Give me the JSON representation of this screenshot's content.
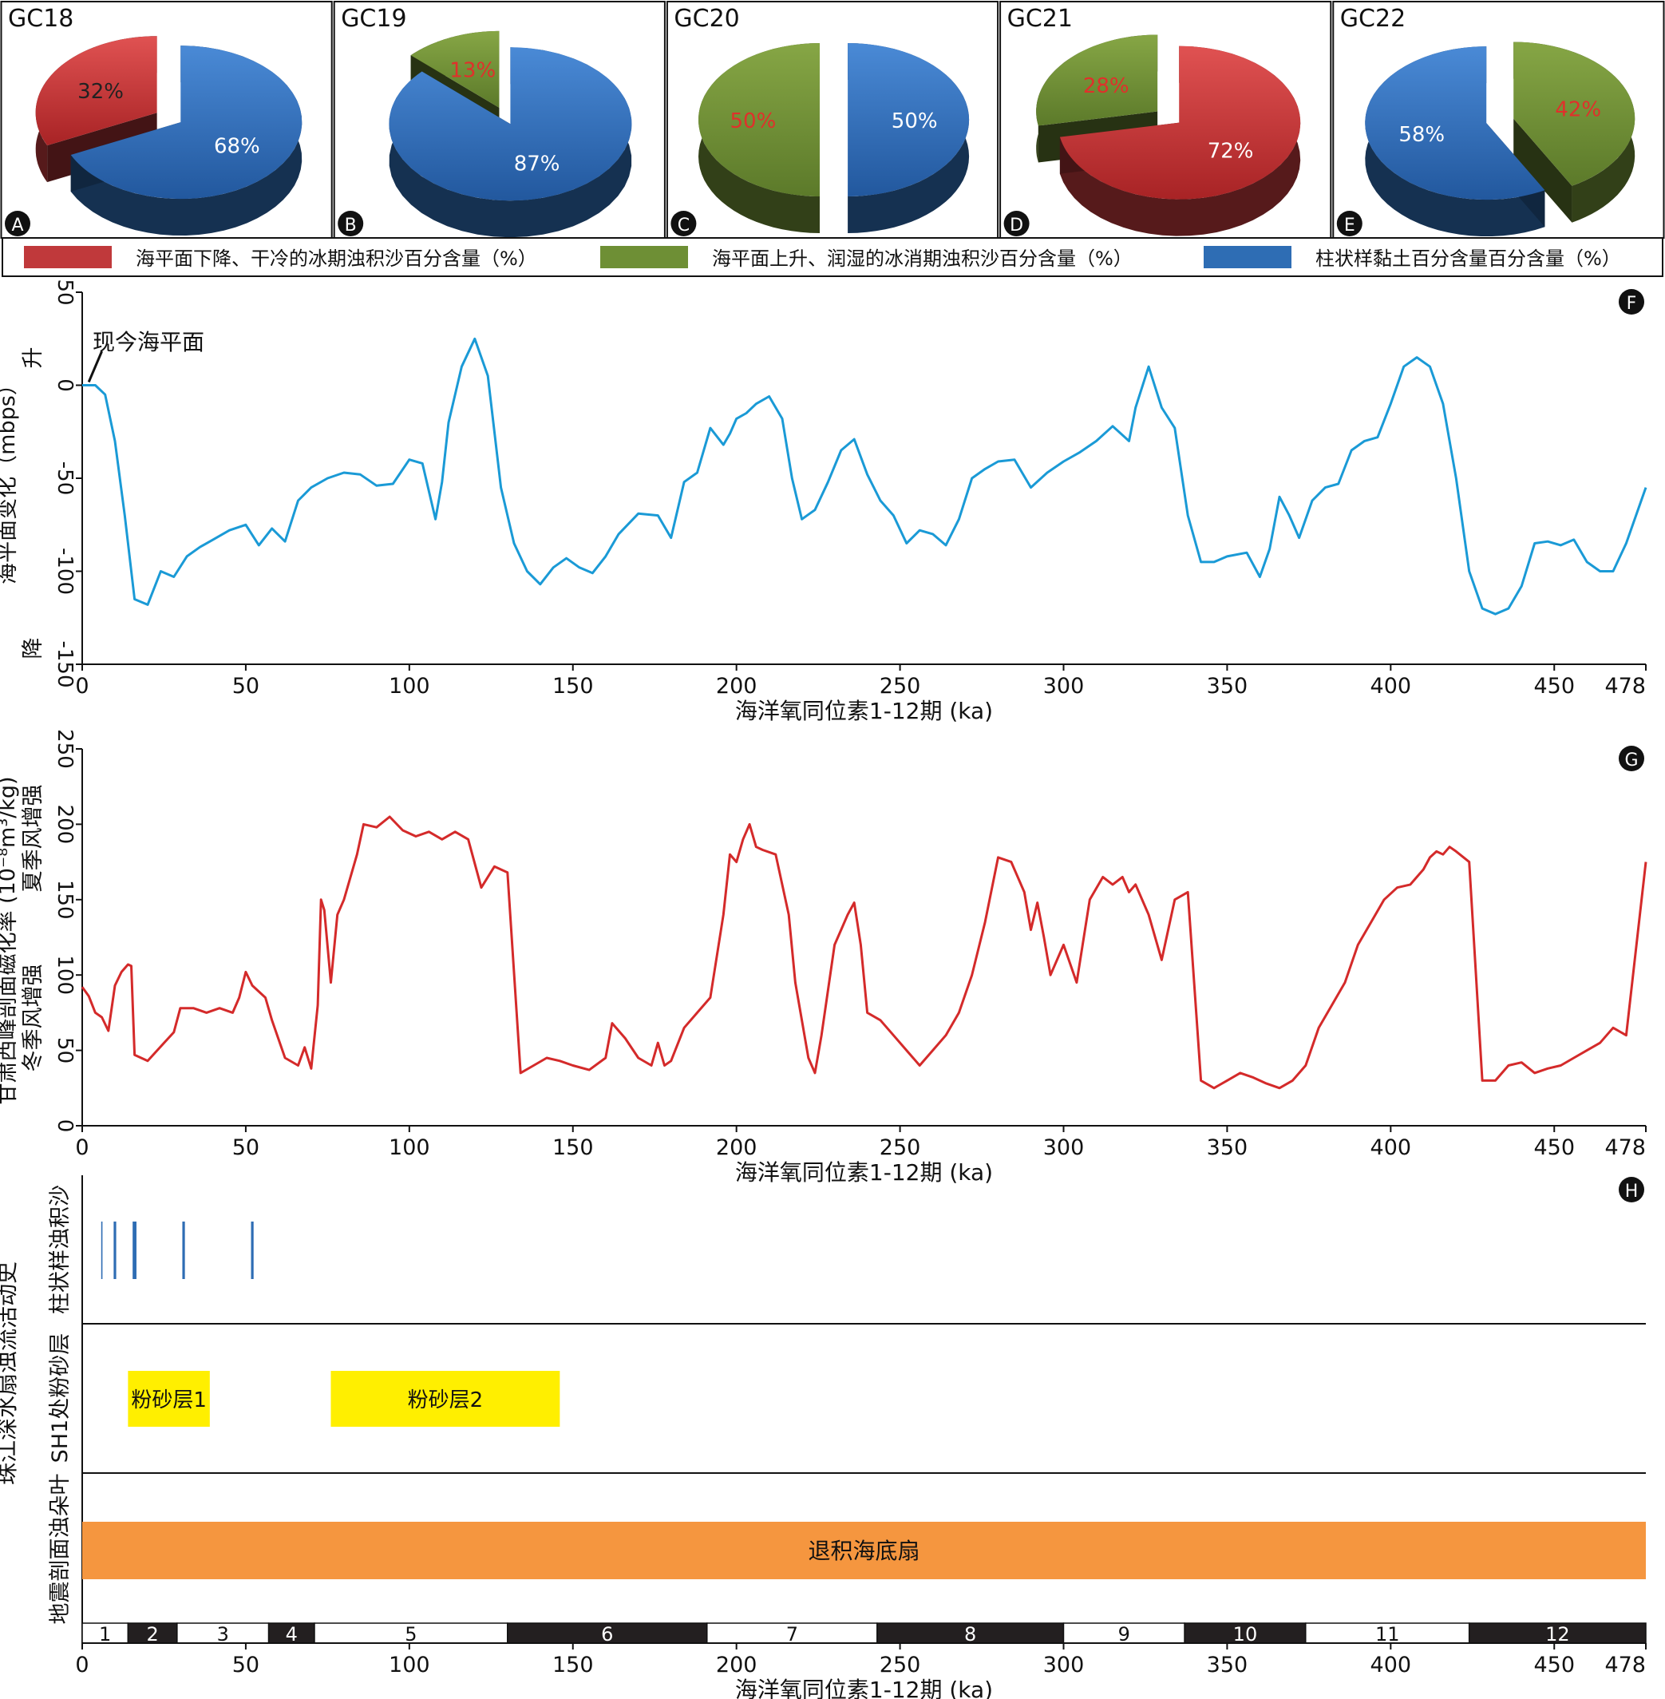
{
  "colors": {
    "red_sand": "#c0393b",
    "green_sand": "#6e8f35",
    "blue_clay": "#2e6db4",
    "sea_curve": "#1a9ad6",
    "mag_curve": "#d42a2a",
    "silt_fill": "#ffef00",
    "fan_fill": "#f5963f",
    "emphasis_label": "#e0302b"
  },
  "pies": [
    {
      "panel": "A",
      "title": "GC18",
      "slices": [
        {
          "key": "red",
          "value": 32,
          "label": "32%"
        },
        {
          "key": "blue",
          "value": 68,
          "label": "68%"
        }
      ]
    },
    {
      "panel": "B",
      "title": "GC19",
      "slices": [
        {
          "key": "green",
          "value": 13,
          "label": "13%"
        },
        {
          "key": "blue",
          "value": 87,
          "label": "87%"
        }
      ]
    },
    {
      "panel": "C",
      "title": "GC20",
      "slices": [
        {
          "key": "green",
          "value": 50,
          "label": "50%"
        },
        {
          "key": "blue",
          "value": 50,
          "label": "50%"
        }
      ]
    },
    {
      "panel": "D",
      "title": "GC21",
      "slices": [
        {
          "key": "green",
          "value": 28,
          "label": "28%"
        },
        {
          "key": "red",
          "value": 72,
          "label": "72%"
        }
      ]
    },
    {
      "panel": "E",
      "title": "GC22",
      "slices": [
        {
          "key": "blue",
          "value": 58,
          "label": "58%"
        },
        {
          "key": "green",
          "value": 42,
          "label": "42%"
        }
      ]
    }
  ],
  "legend": [
    {
      "key": "red",
      "label": "海平面下降、干冷的冰期浊积沙百分含量（%）"
    },
    {
      "key": "green",
      "label": "海平面上升、润湿的冰消期浊积沙百分含量（%）"
    },
    {
      "key": "blue",
      "label": "柱状样黏土百分含量百分含量（%）"
    }
  ],
  "x_axis": {
    "label": "海洋氧同位素1-12期 (ka)",
    "ticks": [
      0,
      50,
      100,
      150,
      200,
      250,
      300,
      350,
      400,
      450,
      478
    ],
    "range": [
      0,
      478
    ]
  },
  "chart_data": [
    {
      "panel": "F",
      "type": "line",
      "ylabel": "海平面变化（mbps）",
      "ylabel_up": "升",
      "ylabel_down": "降",
      "annotation": "现今海平面",
      "ylim": [
        -150,
        50
      ],
      "yticks": [
        50,
        0,
        -50,
        -100,
        -150
      ],
      "x": [
        0,
        4,
        7,
        10,
        13,
        16,
        20,
        24,
        28,
        32,
        36,
        40,
        45,
        50,
        54,
        58,
        62,
        66,
        70,
        75,
        80,
        85,
        90,
        95,
        100,
        104,
        108,
        110,
        112,
        116,
        120,
        124,
        128,
        132,
        136,
        140,
        144,
        148,
        152,
        156,
        160,
        164,
        170,
        176,
        180,
        184,
        188,
        192,
        196,
        198,
        200,
        203,
        206,
        210,
        214,
        217,
        220,
        224,
        228,
        232,
        236,
        240,
        244,
        248,
        252,
        256,
        260,
        264,
        268,
        272,
        276,
        280,
        285,
        290,
        295,
        300,
        305,
        310,
        315,
        320,
        322,
        326,
        330,
        334,
        338,
        342,
        346,
        350,
        356,
        360,
        363,
        366,
        369,
        372,
        376,
        380,
        384,
        388,
        392,
        396,
        400,
        404,
        408,
        412,
        416,
        420,
        424,
        428,
        432,
        436,
        440,
        444,
        448,
        452,
        456,
        460,
        464,
        468,
        472,
        478
      ],
      "values": [
        0,
        0,
        -5,
        -30,
        -70,
        -115,
        -118,
        -100,
        -103,
        -92,
        -87,
        -83,
        -78,
        -75,
        -86,
        -77,
        -84,
        -62,
        -55,
        -50,
        -47,
        -48,
        -54,
        -53,
        -40,
        -42,
        -72,
        -52,
        -20,
        10,
        25,
        5,
        -55,
        -85,
        -100,
        -107,
        -98,
        -93,
        -98,
        -101,
        -92,
        -80,
        -69,
        -70,
        -82,
        -52,
        -47,
        -23,
        -32,
        -26,
        -18,
        -15,
        -10,
        -6,
        -18,
        -50,
        -72,
        -67,
        -52,
        -35,
        -29,
        -48,
        -62,
        -70,
        -85,
        -78,
        -80,
        -86,
        -72,
        -50,
        -45,
        -41,
        -40,
        -55,
        -47,
        -41,
        -36,
        -30,
        -22,
        -30,
        -12,
        10,
        -12,
        -23,
        -70,
        -95,
        -95,
        -92,
        -90,
        -103,
        -88,
        -60,
        -70,
        -82,
        -62,
        -55,
        -53,
        -35,
        -30,
        -28,
        -10,
        10,
        15,
        10,
        -10,
        -50,
        -100,
        -120,
        -123,
        -120,
        -108,
        -85,
        -84,
        -86,
        -83,
        -95,
        -100,
        -100,
        -85,
        -55
      ]
    },
    {
      "panel": "G",
      "type": "line",
      "ylabel": "甘肃西峰剖面磁化率 (10⁻⁸m³/kg)",
      "ylabel_up": "夏季风增强",
      "ylabel_down": "冬季风增强",
      "ylim": [
        0,
        250
      ],
      "yticks": [
        250,
        200,
        150,
        100,
        50,
        0
      ],
      "x": [
        0,
        2,
        4,
        6,
        8,
        10,
        12,
        14,
        15,
        16,
        20,
        25,
        28,
        30,
        34,
        38,
        42,
        46,
        48,
        50,
        52,
        56,
        58,
        62,
        66,
        68,
        70,
        72,
        73,
        74,
        76,
        78,
        80,
        84,
        86,
        90,
        94,
        98,
        102,
        106,
        110,
        114,
        118,
        122,
        126,
        130,
        134,
        138,
        142,
        146,
        150,
        155,
        160,
        162,
        166,
        170,
        174,
        176,
        178,
        180,
        184,
        188,
        192,
        196,
        198,
        200,
        202,
        204,
        206,
        208,
        212,
        216,
        218,
        222,
        224,
        226,
        230,
        232,
        234,
        236,
        238,
        240,
        244,
        248,
        252,
        256,
        260,
        264,
        268,
        272,
        276,
        280,
        284,
        288,
        290,
        292,
        294,
        296,
        300,
        304,
        308,
        312,
        315,
        318,
        320,
        322,
        326,
        330,
        334,
        338,
        342,
        346,
        350,
        354,
        358,
        362,
        366,
        370,
        374,
        378,
        382,
        386,
        390,
        394,
        398,
        402,
        406,
        410,
        412,
        414,
        416,
        418,
        420,
        424,
        428,
        432,
        436,
        440,
        444,
        448,
        452,
        456,
        460,
        464,
        468,
        472,
        478
      ],
      "values": [
        92,
        86,
        75,
        72,
        63,
        93,
        102,
        107,
        106,
        47,
        43,
        55,
        62,
        78,
        78,
        75,
        78,
        75,
        85,
        102,
        93,
        85,
        70,
        45,
        40,
        52,
        38,
        80,
        150,
        143,
        95,
        140,
        150,
        180,
        200,
        198,
        205,
        196,
        192,
        195,
        190,
        195,
        190,
        158,
        172,
        168,
        35,
        40,
        45,
        43,
        40,
        37,
        45,
        68,
        58,
        45,
        40,
        55,
        40,
        43,
        65,
        75,
        85,
        140,
        180,
        175,
        190,
        200,
        185,
        183,
        180,
        140,
        95,
        45,
        35,
        60,
        120,
        130,
        140,
        148,
        120,
        75,
        70,
        60,
        50,
        40,
        50,
        60,
        75,
        100,
        135,
        178,
        175,
        155,
        130,
        148,
        125,
        100,
        120,
        95,
        150,
        165,
        160,
        165,
        155,
        160,
        140,
        110,
        150,
        155,
        30,
        25,
        30,
        35,
        32,
        28,
        25,
        30,
        40,
        65,
        80,
        95,
        120,
        135,
        150,
        158,
        160,
        170,
        178,
        182,
        180,
        185,
        182,
        175,
        30,
        30,
        40,
        42,
        35,
        38,
        40,
        45,
        50,
        55,
        65,
        60,
        175
      ]
    }
  ],
  "panel_h": {
    "panel": "H",
    "ylabel_main": "珠江深水扇浊流活动史",
    "row_labels": [
      "柱状样浊积沙",
      "SH1处粉砂层",
      "地震剖面浊朵叶"
    ],
    "turbidite_lines": [
      {
        "ka": 6,
        "weight": 1
      },
      {
        "ka": 10,
        "weight": 2
      },
      {
        "ka": 16,
        "weight": 3
      },
      {
        "ka": 31,
        "weight": 2
      },
      {
        "ka": 52,
        "weight": 2
      }
    ],
    "silt_layers": [
      {
        "label": "粉砂层1",
        "start_ka": 14,
        "end_ka": 39
      },
      {
        "label": "粉砂层2",
        "start_ka": 76,
        "end_ka": 146
      }
    ],
    "fan": {
      "label": "退积海底扇",
      "start_ka": 0,
      "end_ka": 478
    },
    "mis_stages": [
      {
        "label": "1",
        "start_ka": 0,
        "end_ka": 14,
        "dark": false
      },
      {
        "label": "2",
        "start_ka": 14,
        "end_ka": 29,
        "dark": true
      },
      {
        "label": "3",
        "start_ka": 29,
        "end_ka": 57,
        "dark": false
      },
      {
        "label": "4",
        "start_ka": 57,
        "end_ka": 71,
        "dark": true
      },
      {
        "label": "5",
        "start_ka": 71,
        "end_ka": 130,
        "dark": false
      },
      {
        "label": "6",
        "start_ka": 130,
        "end_ka": 191,
        "dark": true
      },
      {
        "label": "7",
        "start_ka": 191,
        "end_ka": 243,
        "dark": false
      },
      {
        "label": "8",
        "start_ka": 243,
        "end_ka": 300,
        "dark": true
      },
      {
        "label": "9",
        "start_ka": 300,
        "end_ka": 337,
        "dark": false
      },
      {
        "label": "10",
        "start_ka": 337,
        "end_ka": 374,
        "dark": true
      },
      {
        "label": "11",
        "start_ka": 374,
        "end_ka": 424,
        "dark": false
      },
      {
        "label": "12",
        "start_ka": 424,
        "end_ka": 478,
        "dark": true
      }
    ]
  }
}
